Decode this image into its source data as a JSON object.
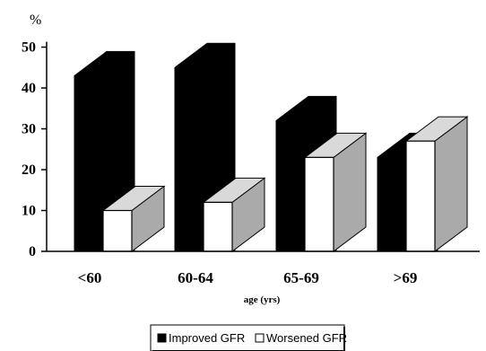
{
  "chart_data": {
    "type": "bar",
    "style": "3d-clustered",
    "categories": [
      "<60",
      "60-64",
      "65-69",
      ">69"
    ],
    "series": [
      {
        "name": "Improved GFR",
        "values": [
          43,
          45,
          32,
          23
        ],
        "color": "#000000"
      },
      {
        "name": "Worsened GFR",
        "values": [
          10,
          12,
          23,
          27
        ],
        "color": "#ffffff"
      }
    ],
    "xlabel": "age (yrs)",
    "ylabel": "%",
    "ylim": [
      0,
      50
    ],
    "yticks": [
      0,
      10,
      20,
      30,
      40,
      50
    ],
    "grid": false,
    "legend_position": "bottom",
    "colors": {
      "side": "#aaaaaa",
      "outline": "#000000"
    }
  }
}
